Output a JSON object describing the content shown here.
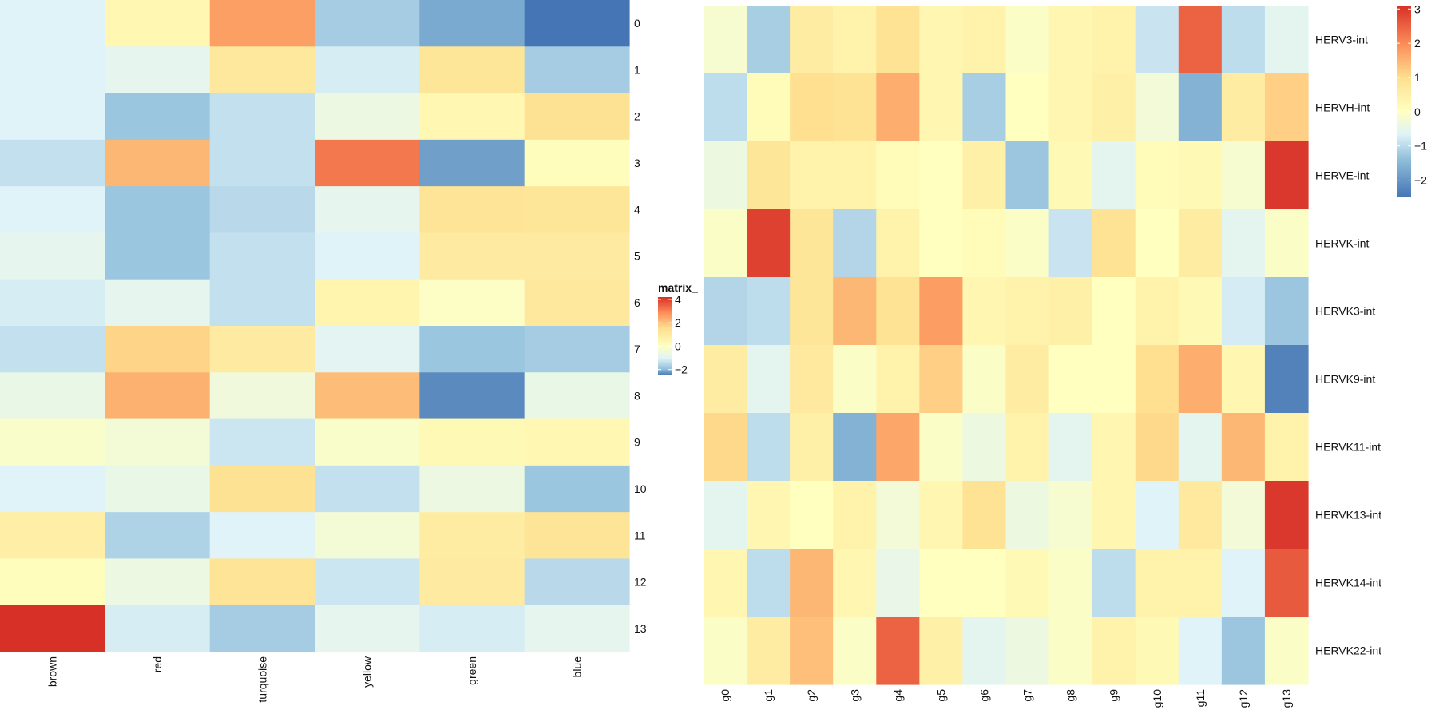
{
  "chart_data": [
    {
      "type": "heatmap",
      "title": "",
      "xlabel": "",
      "ylabel": "",
      "x_categories": [
        "brown",
        "red",
        "turquoise",
        "yellow",
        "green",
        "blue"
      ],
      "y_categories": [
        "0",
        "1",
        "2",
        "3",
        "4",
        "5",
        "6",
        "7",
        "8",
        "9",
        "10",
        "11",
        "12",
        "13"
      ],
      "values": [
        [
          -1.0,
          0.4,
          2.6,
          -1.6,
          -2.0,
          -2.6
        ],
        [
          -1.0,
          -0.8,
          1.1,
          -1.1,
          1.2,
          -1.6
        ],
        [
          -1.0,
          -1.7,
          -1.3,
          -0.6,
          0.4,
          1.4
        ],
        [
          -1.3,
          2.2,
          -1.3,
          3.2,
          -2.1,
          0.1
        ],
        [
          -1.0,
          -1.7,
          -1.4,
          -0.8,
          1.3,
          1.2
        ],
        [
          -0.8,
          -1.7,
          -1.3,
          -1.0,
          1.0,
          1.0
        ],
        [
          -1.1,
          -0.8,
          -1.3,
          0.5,
          -0.1,
          1.1
        ],
        [
          -1.3,
          1.7,
          1.0,
          -0.9,
          -1.7,
          -1.6
        ],
        [
          -0.7,
          2.3,
          -0.5,
          2.1,
          -2.3,
          -0.7
        ],
        [
          -0.2,
          -0.4,
          -1.2,
          -0.2,
          0.3,
          0.4
        ],
        [
          -1.0,
          -0.7,
          1.4,
          -1.3,
          -0.6,
          -1.7
        ],
        [
          0.8,
          -1.5,
          -1.0,
          -0.4,
          0.9,
          1.3
        ],
        [
          0.1,
          -0.6,
          1.3,
          -1.2,
          1.0,
          -1.4
        ],
        [
          4.2,
          -1.1,
          -1.6,
          -0.8,
          -1.1,
          -0.8
        ]
      ],
      "color_scale": {
        "title": "matrix_",
        "ticks": [
          4,
          2,
          0,
          -2
        ],
        "range": [
          -2.5,
          4.2
        ],
        "colors": [
          "#4575b4",
          "#91bfdb",
          "#e0f3f8",
          "#ffffbf",
          "#fee090",
          "#fc8d59",
          "#d73027"
        ]
      }
    },
    {
      "type": "heatmap",
      "title": "",
      "xlabel": "",
      "ylabel": "",
      "x_categories": [
        "g0",
        "g1",
        "g2",
        "g3",
        "g4",
        "g5",
        "g6",
        "g7",
        "g8",
        "g9",
        "g10",
        "g11",
        "g12",
        "g13"
      ],
      "y_categories": [
        "HERV3-int",
        "HERVH-int",
        "HERVE-int",
        "HERVK-int",
        "HERVK3-int",
        "HERVK9-int",
        "HERVK11-int",
        "HERVK13-int",
        "HERVK14-int",
        "HERVK22-int"
      ],
      "values": [
        [
          -0.2,
          -1.2,
          0.6,
          0.4,
          0.9,
          0.3,
          0.4,
          -0.1,
          0.3,
          0.4,
          -0.9,
          2.5,
          -1.0,
          -0.6
        ],
        [
          -1.0,
          0.1,
          1.0,
          0.9,
          1.6,
          0.3,
          -1.2,
          0.0,
          0.3,
          0.5,
          -0.3,
          -1.6,
          0.6,
          1.2
        ],
        [
          -0.4,
          0.8,
          0.4,
          0.4,
          0.1,
          0.0,
          0.5,
          -1.3,
          0.2,
          -0.6,
          0.1,
          0.2,
          -0.2,
          3.0
        ],
        [
          -0.1,
          2.9,
          0.8,
          -1.1,
          0.4,
          0.0,
          0.1,
          -0.1,
          -0.9,
          0.9,
          0.0,
          0.6,
          -0.6,
          -0.1
        ],
        [
          -1.1,
          -1.0,
          0.8,
          1.5,
          0.9,
          1.8,
          0.3,
          0.4,
          0.5,
          0.0,
          0.4,
          0.2,
          -0.8,
          -1.3
        ],
        [
          0.6,
          -0.6,
          0.7,
          -0.1,
          0.4,
          1.2,
          -0.1,
          0.6,
          0.0,
          0.0,
          1.0,
          1.6,
          0.3,
          -2.3
        ],
        [
          1.1,
          -1.0,
          0.5,
          -1.6,
          1.7,
          -0.1,
          -0.4,
          0.4,
          -0.6,
          0.3,
          1.1,
          -0.6,
          1.5,
          0.4
        ],
        [
          -0.6,
          0.3,
          0.0,
          0.4,
          -0.3,
          0.3,
          0.9,
          -0.4,
          -0.2,
          0.3,
          -0.7,
          0.7,
          -0.3,
          3.0
        ],
        [
          0.3,
          -1.0,
          1.5,
          0.3,
          -0.5,
          0.0,
          0.0,
          0.2,
          -0.1,
          -1.0,
          0.4,
          0.4,
          -0.7,
          2.6
        ],
        [
          -0.1,
          0.6,
          1.4,
          -0.1,
          2.5,
          0.5,
          -0.6,
          -0.4,
          -0.1,
          0.4,
          0.2,
          -0.7,
          -1.3,
          -0.1
        ]
      ],
      "color_scale": {
        "title": "",
        "ticks": [
          3,
          2,
          1,
          0,
          -1,
          -2
        ],
        "range": [
          -2.5,
          3.1
        ],
        "colors": [
          "#4575b4",
          "#91bfdb",
          "#e0f3f8",
          "#ffffbf",
          "#fee090",
          "#fc8d59",
          "#d73027"
        ]
      }
    }
  ]
}
